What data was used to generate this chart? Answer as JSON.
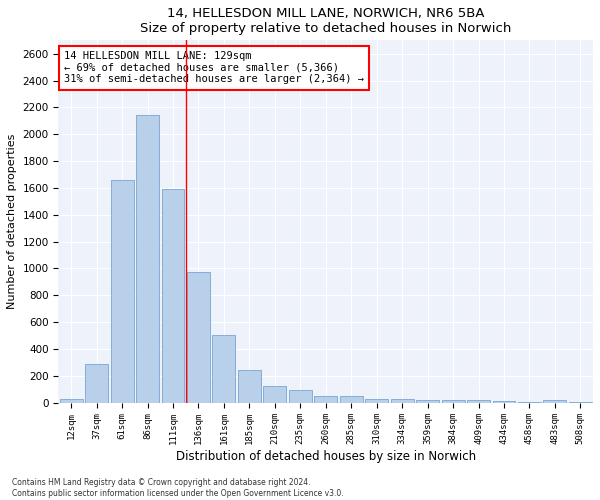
{
  "title1": "14, HELLESDON MILL LANE, NORWICH, NR6 5BA",
  "title2": "Size of property relative to detached houses in Norwich",
  "xlabel": "Distribution of detached houses by size in Norwich",
  "ylabel": "Number of detached properties",
  "footnote1": "Contains HM Land Registry data © Crown copyright and database right 2024.",
  "footnote2": "Contains public sector information licensed under the Open Government Licence v3.0.",
  "annotation_line1": "14 HELLESDON MILL LANE: 129sqm",
  "annotation_line2": "← 69% of detached houses are smaller (5,366)",
  "annotation_line3": "31% of semi-detached houses are larger (2,364) →",
  "bar_color": "#b8d0ea",
  "bar_edge_color": "#6699cc",
  "vline_color": "red",
  "vline_x": 4.5,
  "categories": [
    "12sqm",
    "37sqm",
    "61sqm",
    "86sqm",
    "111sqm",
    "136sqm",
    "161sqm",
    "185sqm",
    "210sqm",
    "235sqm",
    "260sqm",
    "285sqm",
    "310sqm",
    "334sqm",
    "359sqm",
    "384sqm",
    "409sqm",
    "434sqm",
    "458sqm",
    "483sqm",
    "508sqm"
  ],
  "values": [
    25,
    290,
    1660,
    2140,
    1595,
    970,
    500,
    245,
    125,
    95,
    50,
    45,
    25,
    30,
    18,
    22,
    18,
    12,
    5,
    22,
    5
  ],
  "ylim": [
    0,
    2700
  ],
  "yticks": [
    0,
    200,
    400,
    600,
    800,
    1000,
    1200,
    1400,
    1600,
    1800,
    2000,
    2200,
    2400,
    2600
  ],
  "figsize": [
    6.0,
    5.0
  ],
  "dpi": 100,
  "background_color": "#eef2fb"
}
